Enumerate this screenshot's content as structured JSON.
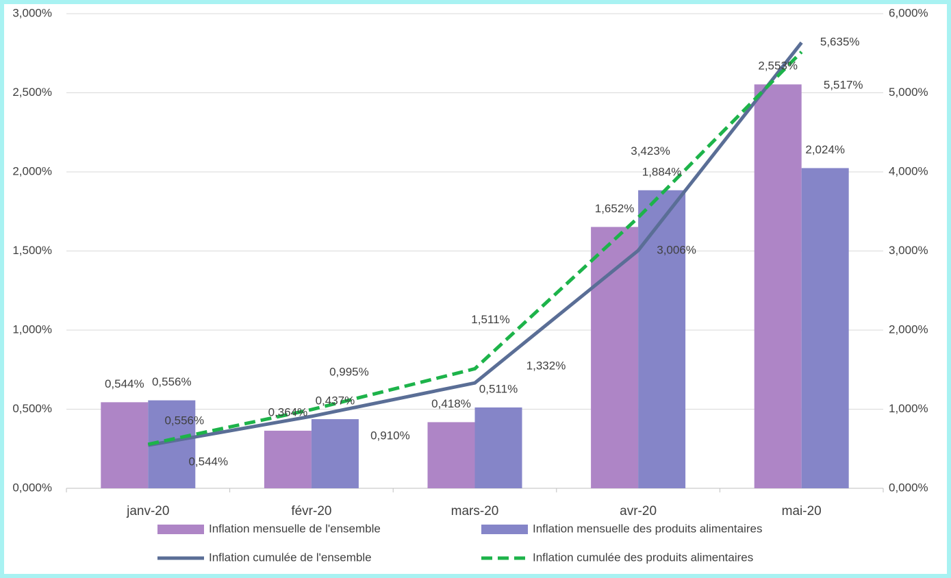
{
  "chart_data": {
    "type": "bar",
    "categories": [
      "janv-20",
      "févr-20",
      "mars-20",
      "avr-20",
      "mai-20"
    ],
    "series": [
      {
        "name": "Inflation mensuelle de l'ensemble",
        "type": "bar",
        "color": "#ae85c6",
        "values": [
          0.544,
          0.364,
          0.418,
          1.652,
          2.553
        ],
        "value_labels": [
          "0,544%",
          "0,364%",
          "0,418%",
          "1,652%",
          "2,553%"
        ]
      },
      {
        "name": "Inflation mensuelle des produits alimentaires",
        "type": "bar",
        "color": "#8585c8",
        "values": [
          0.556,
          0.437,
          0.511,
          1.884,
          2.024
        ],
        "value_labels": [
          "0,556%",
          "0,437%",
          "0,511%",
          "1,884%",
          "2,024%"
        ]
      },
      {
        "name": "Inflation cumulée de l'ensemble",
        "type": "line",
        "axis": "y2",
        "color": "#5a6e96",
        "dash": false,
        "values": [
          0.544,
          0.91,
          1.332,
          3.006,
          5.635
        ],
        "value_labels": [
          "0,544%",
          "0,910%",
          "1,332%",
          "3,006%",
          "5,635%"
        ]
      },
      {
        "name": "Inflation cumulée des produits alimentaires",
        "type": "line",
        "axis": "y2",
        "color": "#1db34a",
        "dash": true,
        "values": [
          0.556,
          0.995,
          1.511,
          3.423,
          5.517
        ],
        "value_labels": [
          "0,556%",
          "0,995%",
          "1,511%",
          "3,423%",
          "5,517%"
        ]
      }
    ],
    "ylim": [
      0,
      3
    ],
    "yticks": [
      {
        "value": 0,
        "label": "0,000%"
      },
      {
        "value": 0.5,
        "label": "0,500%"
      },
      {
        "value": 1,
        "label": "1,000%"
      },
      {
        "value": 1.5,
        "label": "1,500%"
      },
      {
        "value": 2,
        "label": "2,000%"
      },
      {
        "value": 2.5,
        "label": "2,500%"
      },
      {
        "value": 3,
        "label": "3,000%"
      }
    ],
    "y2lim": [
      0,
      6
    ],
    "y2ticks": [
      {
        "value": 0,
        "label": "0,000%"
      },
      {
        "value": 1,
        "label": "1,000%"
      },
      {
        "value": 2,
        "label": "2,000%"
      },
      {
        "value": 3,
        "label": "3,000%"
      },
      {
        "value": 4,
        "label": "4,000%"
      },
      {
        "value": 5,
        "label": "5,000%"
      },
      {
        "value": 6,
        "label": "6,000%"
      }
    ],
    "grid": true,
    "legend": "bottom"
  }
}
